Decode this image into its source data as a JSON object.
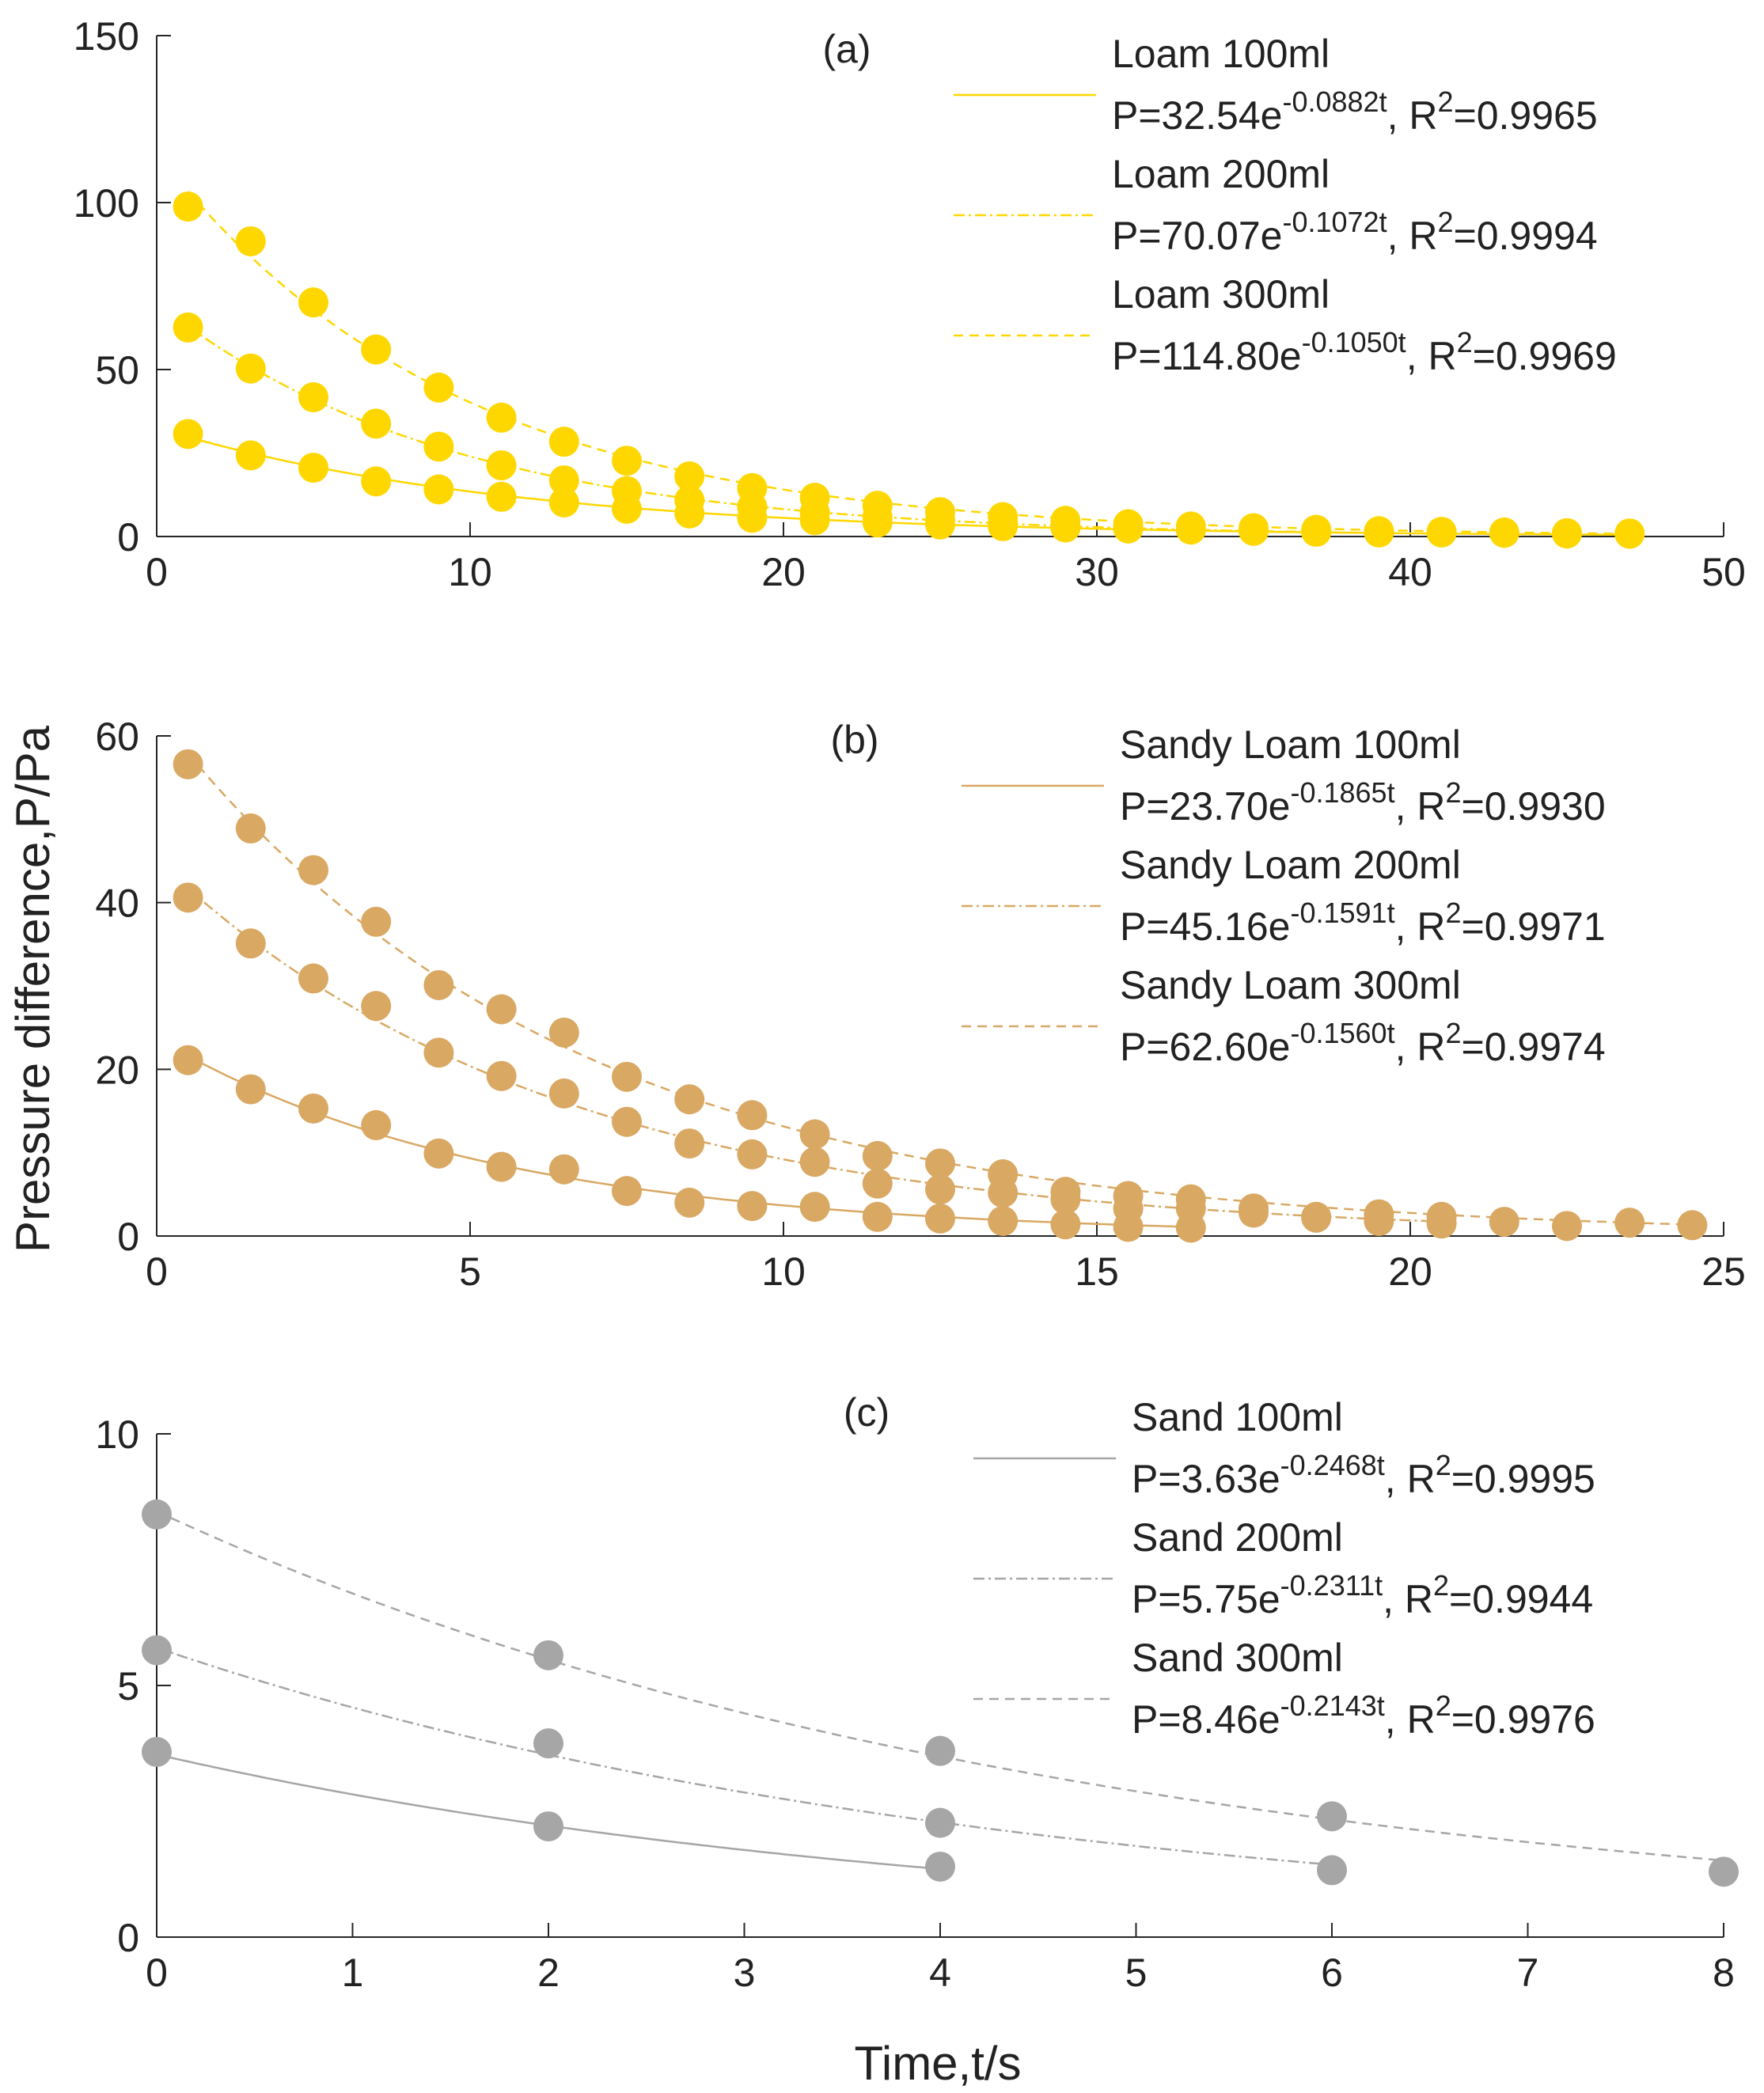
{
  "figure": {
    "ylabel": "Pressure difference,P/Pa",
    "xlabel": "Time,t/s"
  },
  "chart_data": [
    {
      "type": "scatter",
      "panel_label": "(a)",
      "color": "#FFD700",
      "xlim": [
        0,
        50
      ],
      "ylim": [
        0,
        150
      ],
      "xticks": [
        "0",
        "10",
        "20",
        "30",
        "40",
        "50"
      ],
      "yticks": [
        "0",
        "50",
        "100",
        "150"
      ],
      "series": [
        {
          "name": "Loam 100ml",
          "equation": {
            "pre": "P=32.54e",
            "exp": "-0.0882t",
            "mid": ", R",
            "sq": "2",
            "post": "=0.9965"
          },
          "line_style": "solid",
          "fit": {
            "a": 32.54,
            "b": -0.0882
          },
          "x": [
            1,
            3,
            5,
            7,
            9,
            11,
            13,
            15,
            17,
            19,
            21,
            23,
            25,
            27,
            29,
            31,
            33,
            35,
            37,
            39,
            41,
            43,
            45,
            47
          ],
          "y": [
            30.7,
            24.3,
            20.6,
            16.5,
            14.1,
            11.9,
            10.2,
            8.3,
            6.9,
            5.6,
            4.9,
            4.2,
            3.6,
            3.1,
            2.7,
            2.4,
            2.1,
            1.8,
            1.6,
            1.4,
            1.2,
            1.1,
            0.9,
            0.8
          ]
        },
        {
          "name": "Loam 200ml",
          "equation": {
            "pre": "P=70.07e",
            "exp": "-0.1072t",
            "mid": ", R",
            "sq": "2",
            "post": "=0.9994"
          },
          "line_style": "dashdot",
          "fit": {
            "a": 70.07,
            "b": -0.1072
          },
          "x": [
            1,
            3,
            5,
            7,
            9,
            11,
            13,
            15,
            17,
            19,
            21,
            23,
            25,
            27,
            29,
            31,
            33,
            35,
            37,
            39
          ],
          "y": [
            62.6,
            50.3,
            41.7,
            33.8,
            26.9,
            21.3,
            16.8,
            13.6,
            10.9,
            8.9,
            7.2,
            5.9,
            4.8,
            3.9,
            3.2,
            2.6,
            2.1,
            1.7,
            1.4,
            1.2
          ]
        },
        {
          "name": "Loam 300ml",
          "equation": {
            "pre": "P=114.80e",
            "exp": "-0.1050t",
            "mid": ", R",
            "sq": "2",
            "post": "=0.9969"
          },
          "line_style": "dashed",
          "fit": {
            "a": 114.8,
            "b": -0.105
          },
          "x": [
            1,
            3,
            5,
            7,
            9,
            11,
            13,
            15,
            17,
            19,
            21,
            23,
            25,
            27,
            29,
            31,
            33,
            35,
            37,
            39,
            41,
            43,
            45,
            47
          ],
          "y": [
            98.8,
            88.4,
            70.1,
            56.0,
            44.6,
            35.6,
            28.4,
            22.7,
            18.0,
            14.5,
            11.6,
            9.2,
            7.3,
            5.8,
            4.7,
            3.7,
            3.0,
            2.5,
            2.0,
            1.6,
            1.4,
            1.2,
            1.0,
            0.9
          ]
        }
      ]
    },
    {
      "type": "scatter",
      "panel_label": "(b)",
      "color": "#D9A863",
      "xlim": [
        0,
        25
      ],
      "ylim": [
        0,
        60
      ],
      "xticks": [
        "0",
        "5",
        "10",
        "15",
        "20",
        "25"
      ],
      "yticks": [
        "0",
        "20",
        "40",
        "60"
      ],
      "series": [
        {
          "name": "Sandy Loam 100ml",
          "equation": {
            "pre": "P=23.70e",
            "exp": "-0.1865t",
            "mid": ", R",
            "sq": "2",
            "post": "=0.9930"
          },
          "line_style": "solid",
          "fit": {
            "a": 23.7,
            "b": -0.1865
          },
          "x": [
            0.5,
            1.5,
            2.5,
            3.5,
            4.5,
            5.5,
            6.5,
            7.5,
            8.5,
            9.5,
            10.5,
            11.5,
            12.5,
            13.5,
            14.5,
            15.5,
            16.5
          ],
          "y": [
            21.1,
            17.6,
            15.3,
            13.3,
            9.9,
            8.3,
            8.0,
            5.4,
            4.0,
            3.6,
            3.5,
            2.3,
            2.1,
            1.8,
            1.4,
            1.1,
            1.0
          ]
        },
        {
          "name": "Sandy Loam 200ml",
          "equation": {
            "pre": "P=45.16e",
            "exp": "-0.1591t",
            "mid": ", R",
            "sq": "2",
            "post": "=0.9971"
          },
          "line_style": "dashdot",
          "fit": {
            "a": 45.16,
            "b": -0.1591
          },
          "x": [
            0.5,
            1.5,
            2.5,
            3.5,
            4.5,
            5.5,
            6.5,
            7.5,
            8.5,
            9.5,
            10.5,
            11.5,
            12.5,
            13.5,
            14.5,
            15.5,
            16.5,
            17.5,
            18.5,
            19.5,
            20.5
          ],
          "y": [
            40.6,
            35.1,
            30.9,
            27.6,
            22.0,
            19.2,
            17.1,
            13.7,
            11.1,
            9.8,
            8.9,
            6.3,
            5.6,
            5.2,
            4.4,
            3.3,
            3.3,
            2.8,
            2.2,
            1.8,
            1.5
          ]
        },
        {
          "name": "Sandy Loam 300ml",
          "equation": {
            "pre": "P=62.60e",
            "exp": "-0.1560t",
            "mid": ", R",
            "sq": "2",
            "post": "=0.9974"
          },
          "line_style": "dashed",
          "fit": {
            "a": 62.6,
            "b": -0.156
          },
          "x": [
            0.5,
            1.5,
            2.5,
            3.5,
            4.5,
            5.5,
            6.5,
            7.5,
            8.5,
            9.5,
            10.5,
            11.5,
            12.5,
            13.5,
            14.5,
            15.5,
            16.5,
            17.5,
            18.5,
            19.5,
            20.5,
            21.5,
            22.5,
            23.5,
            24.5
          ],
          "y": [
            56.6,
            48.9,
            43.9,
            37.7,
            30.1,
            27.2,
            24.4,
            19.1,
            16.4,
            14.5,
            12.2,
            9.6,
            8.7,
            7.4,
            5.3,
            4.8,
            4.4,
            3.3,
            2.3,
            2.6,
            2.3,
            1.7,
            1.2,
            1.6,
            1.3
          ]
        }
      ]
    },
    {
      "type": "scatter",
      "panel_label": "(c)",
      "color": "#A6A6A6",
      "xlim": [
        0,
        8
      ],
      "ylim": [
        0,
        10
      ],
      "xticks": [
        "0",
        "1",
        "2",
        "3",
        "4",
        "5",
        "6",
        "7",
        "8"
      ],
      "yticks": [
        "0",
        "5",
        "10"
      ],
      "series": [
        {
          "name": "Sand 100ml",
          "equation": {
            "pre": "P=3.63e",
            "exp": "-0.2468t",
            "mid": ", R",
            "sq": "2",
            "post": "=0.9995"
          },
          "line_style": "solid",
          "fit": {
            "a": 3.63,
            "b": -0.2468
          },
          "x": [
            0,
            2,
            4
          ],
          "y": [
            3.68,
            2.2,
            1.4
          ]
        },
        {
          "name": "Sand 200ml",
          "equation": {
            "pre": "P=5.75e",
            "exp": "-0.2311t",
            "mid": ", R",
            "sq": "2",
            "post": "=0.9944"
          },
          "line_style": "dashdot",
          "fit": {
            "a": 5.75,
            "b": -0.2311
          },
          "x": [
            0,
            2,
            4,
            6
          ],
          "y": [
            5.7,
            3.85,
            2.27,
            1.33
          ]
        },
        {
          "name": "Sand 300ml",
          "equation": {
            "pre": "P=8.46e",
            "exp": "-0.2143t",
            "mid": ", R",
            "sq": "2",
            "post": "=0.9976"
          },
          "line_style": "dashed",
          "fit": {
            "a": 8.46,
            "b": -0.2143
          },
          "x": [
            0,
            2,
            4,
            6,
            8
          ],
          "y": [
            8.4,
            5.6,
            3.7,
            2.4,
            1.3
          ]
        }
      ]
    }
  ]
}
